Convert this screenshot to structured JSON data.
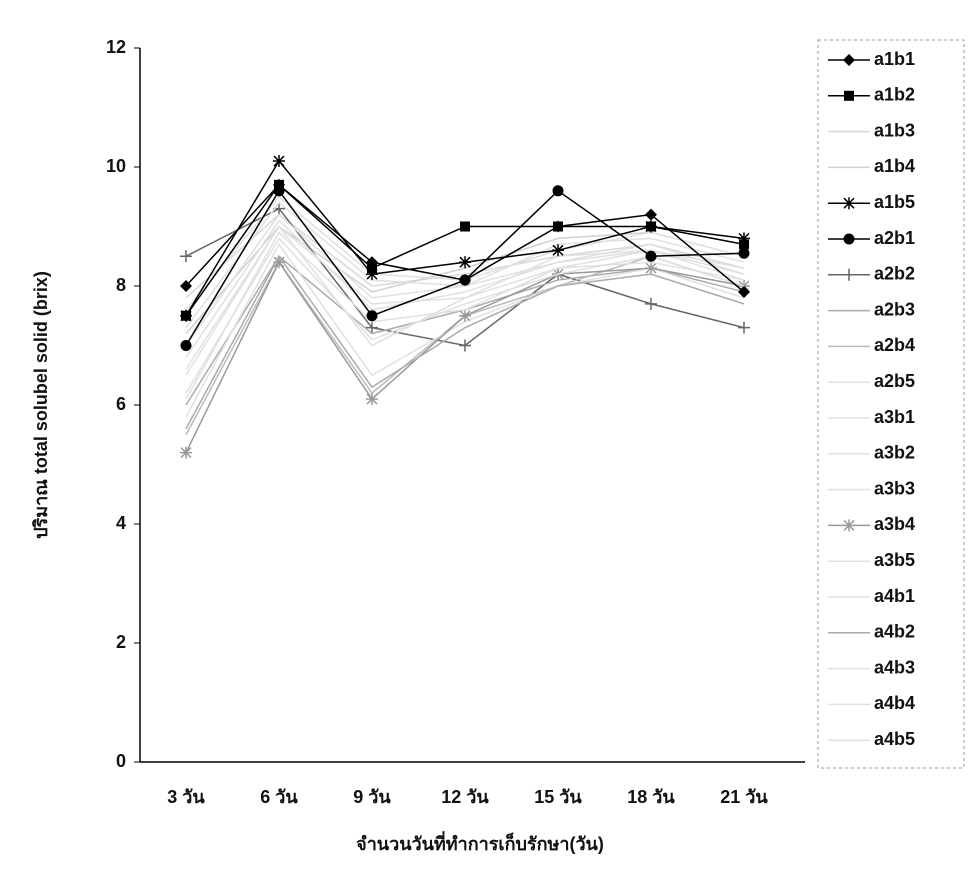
{
  "chart_data": {
    "type": "line",
    "x_label": "จำนวนวันที่ทำการเก็บรักษา(วัน)",
    "y_label": "ปริมาณ total solubel solid (brix)",
    "categories": [
      "3 วัน",
      "6 วัน",
      "9 วัน",
      "12 วัน",
      "15 วัน",
      "18 วัน",
      "21 วัน"
    ],
    "ylim": [
      0,
      12
    ],
    "yticks": [
      0,
      2,
      4,
      6,
      8,
      10,
      12
    ],
    "series": [
      {
        "name": "a1b1",
        "color": "#000000",
        "marker": "diamond",
        "values": [
          8.0,
          9.7,
          8.4,
          8.1,
          9.0,
          9.2,
          7.9
        ]
      },
      {
        "name": "a1b2",
        "color": "#000000",
        "marker": "square",
        "values": [
          7.5,
          9.7,
          8.3,
          9.0,
          9.0,
          9.0,
          8.7
        ]
      },
      {
        "name": "a1b3",
        "color": "#d8d8d8",
        "values": [
          7.8,
          9.2,
          8.0,
          8.2,
          8.5,
          8.7,
          8.3
        ]
      },
      {
        "name": "a1b4",
        "color": "#d0d0d0",
        "values": [
          7.2,
          9.0,
          7.9,
          8.3,
          8.8,
          8.9,
          8.5
        ]
      },
      {
        "name": "a1b5",
        "color": "#000000",
        "marker": "star",
        "values": [
          7.5,
          10.1,
          8.2,
          8.4,
          8.6,
          9.0,
          8.8
        ]
      },
      {
        "name": "a2b1",
        "color": "#000000",
        "marker": "circle",
        "values": [
          7.0,
          9.6,
          7.5,
          8.1,
          9.6,
          8.5,
          8.55
        ]
      },
      {
        "name": "a2b2",
        "color": "#666666",
        "marker": "plus",
        "values": [
          8.5,
          9.3,
          7.3,
          7.0,
          8.2,
          7.7,
          7.3
        ]
      },
      {
        "name": "a2b3",
        "color": "#aaaaaa",
        "values": [
          6.0,
          8.5,
          7.2,
          7.6,
          8.1,
          8.3,
          7.9
        ]
      },
      {
        "name": "a2b4",
        "color": "#bbbbbb",
        "values": [
          5.5,
          8.4,
          6.2,
          7.5,
          8.0,
          8.5,
          8.0
        ]
      },
      {
        "name": "a2b5",
        "color": "#e0e0e0",
        "values": [
          6.5,
          9.0,
          7.0,
          7.8,
          8.3,
          8.6,
          8.2
        ]
      },
      {
        "name": "a3b1",
        "color": "#e0e0e0",
        "values": [
          7.3,
          9.4,
          8.1,
          8.0,
          8.7,
          8.8,
          8.4
        ]
      },
      {
        "name": "a3b2",
        "color": "#e0e0e0",
        "values": [
          6.8,
          9.1,
          7.6,
          7.9,
          8.4,
          8.6,
          8.1
        ]
      },
      {
        "name": "a3b3",
        "color": "#e0e0e0",
        "values": [
          5.8,
          8.7,
          6.5,
          7.4,
          8.0,
          8.3,
          7.8
        ]
      },
      {
        "name": "a3b4",
        "color": "#999999",
        "marker": "star",
        "values": [
          5.2,
          8.4,
          6.1,
          7.5,
          8.2,
          8.3,
          8.0
        ]
      },
      {
        "name": "a3b5",
        "color": "#e0e0e0",
        "values": [
          6.2,
          8.8,
          7.1,
          7.7,
          8.2,
          8.5,
          8.0
        ]
      },
      {
        "name": "a4b1",
        "color": "#e0e0e0",
        "values": [
          7.6,
          9.5,
          8.2,
          8.1,
          8.6,
          8.9,
          8.5
        ]
      },
      {
        "name": "a4b2",
        "color": "#aaaaaa",
        "values": [
          5.6,
          8.5,
          6.3,
          7.3,
          8.0,
          8.2,
          7.7
        ]
      },
      {
        "name": "a4b3",
        "color": "#e0e0e0",
        "values": [
          6.1,
          8.9,
          7.4,
          7.6,
          8.3,
          8.4,
          8.1
        ]
      },
      {
        "name": "a4b4",
        "color": "#e0e0e0",
        "values": [
          6.6,
          9.0,
          7.7,
          7.8,
          8.5,
          8.6,
          8.3
        ]
      },
      {
        "name": "a4b5",
        "color": "#e0e0e0",
        "values": [
          7.0,
          9.2,
          7.8,
          8.0,
          8.4,
          8.7,
          8.2
        ]
      }
    ]
  }
}
